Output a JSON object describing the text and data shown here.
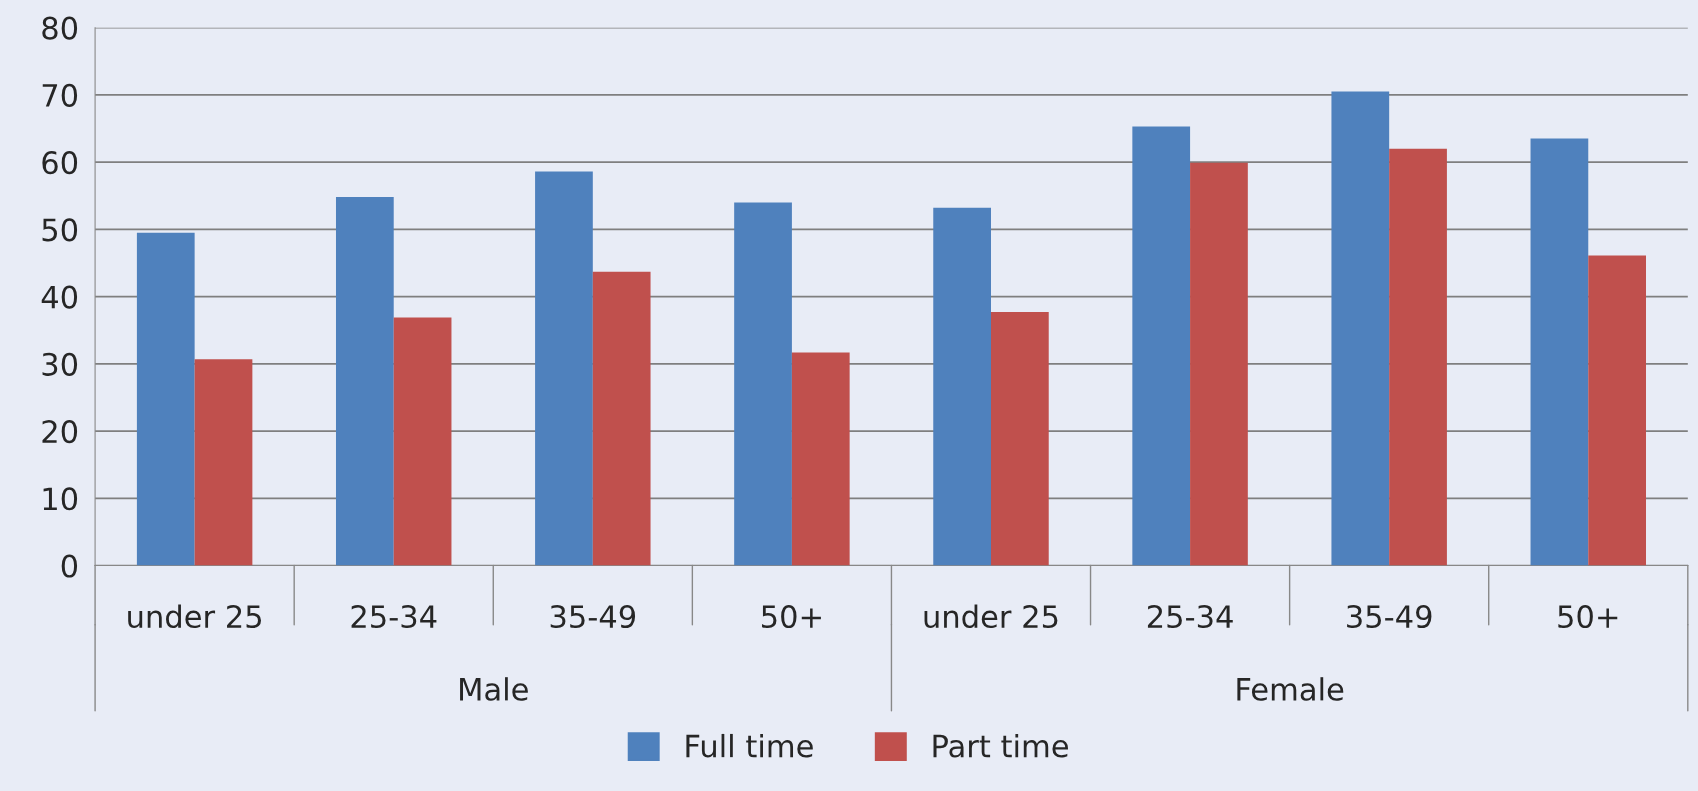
{
  "chart_data": {
    "type": "bar",
    "categories": [
      "under 25",
      "25-34",
      "35-49",
      "50+",
      "under 25",
      "25-34",
      "35-49",
      "50+"
    ],
    "series": [
      {
        "name": "Full time",
        "color": "#4f81bd",
        "values": [
          49.5,
          54.8,
          58.6,
          54.0,
          53.2,
          65.3,
          70.5,
          63.5
        ]
      },
      {
        "name": "Part time",
        "color": "#c0504d",
        "values": [
          30.7,
          36.9,
          43.7,
          31.7,
          37.7,
          59.9,
          62.0,
          46.1
        ]
      }
    ],
    "annotations": [
      "Male",
      "Female"
    ],
    "ylim": [
      0,
      80
    ],
    "yticks": [
      0,
      10,
      20,
      30,
      40,
      50,
      60,
      70,
      80
    ],
    "grid": "y",
    "legend": "bottom"
  }
}
